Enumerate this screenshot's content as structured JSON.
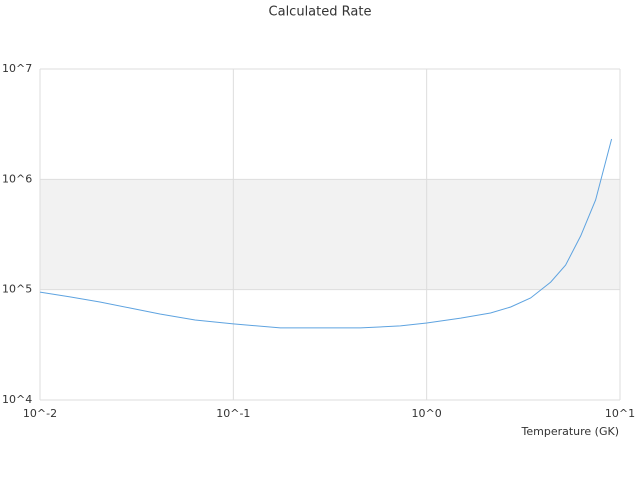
{
  "chart_data": {
    "type": "line",
    "title": "Calculated Rate",
    "x_label": "Temperature (GK)",
    "x": [
      0.01,
      0.0143,
      0.0204,
      0.0292,
      0.0417,
      0.0634,
      0.1,
      0.175,
      0.3,
      0.454,
      0.731,
      1,
      1.5,
      2.14,
      2.72,
      3.45,
      4.38,
      5.23,
      6.26,
      7.48,
      9.05
    ],
    "values": [
      95000,
      86000,
      77300,
      68200,
      60200,
      53100,
      48900,
      45000,
      45000,
      45000,
      46900,
      49900,
      55300,
      61500,
      69600,
      84100,
      117000,
      167000,
      307000,
      650000,
      2320000
    ],
    "color": "#5ea3e0",
    "xlim": [
      0.01,
      10
    ],
    "ylim": [
      10000,
      10000000
    ],
    "x_log": true,
    "y_log": true,
    "xticks": [
      {
        "value": 0.01,
        "label": "10^-2"
      },
      {
        "value": 0.1,
        "label": "10^-1"
      },
      {
        "value": 1,
        "label": "10^0"
      },
      {
        "value": 10,
        "label": "10^1"
      }
    ],
    "yticks": [
      {
        "value": 10000,
        "label": "10^4"
      },
      {
        "value": 100000,
        "label": "10^5"
      },
      {
        "value": 1000000,
        "label": "10^6"
      },
      {
        "value": 10000000,
        "label": "10^7"
      }
    ],
    "grid": true,
    "band_color": "#f2f2f2"
  }
}
